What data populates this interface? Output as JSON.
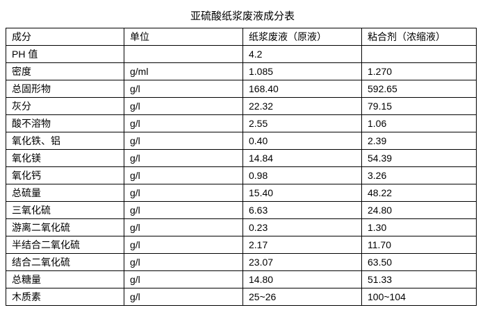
{
  "title": "亚硫酸纸浆废液成分表",
  "headers": [
    "成分",
    "单位",
    "纸浆废液（原液）",
    "粘合剂（浓缩液）"
  ],
  "rows": [
    [
      "PH 值",
      "",
      "4.2",
      ""
    ],
    [
      "密度",
      "g/ml",
      "1.085",
      "1.270"
    ],
    [
      "总固形物",
      "g/l",
      "168.40",
      "592.65"
    ],
    [
      "灰分",
      "g/l",
      "22.32",
      "79.15"
    ],
    [
      "酸不溶物",
      "g/l",
      "2.55",
      "1.06"
    ],
    [
      "氧化铁、铝",
      "g/l",
      "0.40",
      "2.39"
    ],
    [
      "氧化镁",
      "g/l",
      "14.84",
      "54.39"
    ],
    [
      "氧化钙",
      "g/l",
      "0.98",
      "3.26"
    ],
    [
      "总硫量",
      "g/l",
      "15.40",
      "48.22"
    ],
    [
      "三氧化硫",
      "g/l",
      "6.63",
      "24.80"
    ],
    [
      "游离二氧化硫",
      "g/l",
      "0.23",
      "1.30"
    ],
    [
      "半结合二氧化硫",
      "g/l",
      "2.17",
      "11.70"
    ],
    [
      "结合二氧化硫",
      "g/l",
      "23.07",
      "63.50"
    ],
    [
      "总糖量",
      "g/l",
      "14.80",
      "51.33"
    ],
    [
      "木质素",
      "g/l",
      "25~26",
      "100~104"
    ]
  ]
}
